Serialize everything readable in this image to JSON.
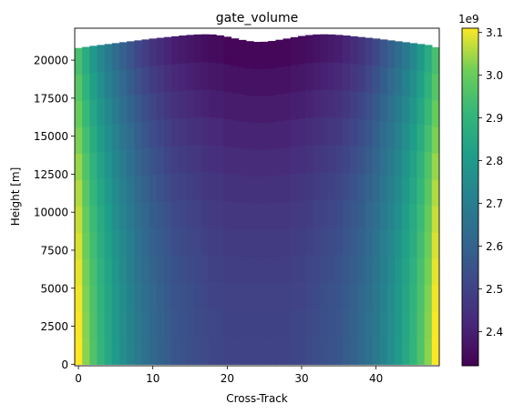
{
  "chart_data": {
    "type": "heatmap",
    "title": "gate_volume",
    "xlabel": "Cross-Track",
    "ylabel": "Height [m]",
    "x_columns": 49,
    "xlim": [
      -0.5,
      48.5
    ],
    "ylim": [
      -100,
      22100
    ],
    "xticks": [
      0,
      10,
      20,
      30,
      40
    ],
    "yticks": [
      0,
      2500,
      5000,
      7500,
      10000,
      12500,
      15000,
      17500,
      20000
    ],
    "column_top_height": [
      20800,
      20870,
      20940,
      21000,
      21060,
      21120,
      21180,
      21240,
      21300,
      21360,
      21420,
      21470,
      21520,
      21570,
      21620,
      21660,
      21690,
      21700,
      21690,
      21630,
      21540,
      21430,
      21330,
      21250,
      21200,
      21210,
      21260,
      21340,
      21420,
      21510,
      21590,
      21650,
      21690,
      21700,
      21690,
      21660,
      21620,
      21570,
      21520,
      21470,
      21420,
      21360,
      21300,
      21240,
      21180,
      21120,
      21060,
      21000,
      20850
    ],
    "column_base_volume": [
      3.11,
      3.03,
      2.96,
      2.9,
      2.85,
      2.8,
      2.76,
      2.72,
      2.68,
      2.65,
      2.62,
      2.6,
      2.58,
      2.56,
      2.55,
      2.54,
      2.53,
      2.52,
      2.51,
      2.51,
      2.5,
      2.5,
      2.5,
      2.5,
      2.5,
      2.5,
      2.5,
      2.5,
      2.5,
      2.51,
      2.51,
      2.52,
      2.53,
      2.54,
      2.55,
      2.56,
      2.58,
      2.6,
      2.62,
      2.65,
      2.68,
      2.72,
      2.76,
      2.8,
      2.85,
      2.9,
      2.96,
      3.03,
      3.11
    ],
    "volume_decrease_at_top": 0.18,
    "colorbar": {
      "colormap": "viridis",
      "range": [
        2.32,
        3.11
      ],
      "ticks": [
        2.4,
        2.5,
        2.6,
        2.7,
        2.8,
        2.9,
        3.0,
        3.1
      ],
      "tick_labels": [
        "2.4",
        "2.5",
        "2.6",
        "2.7",
        "2.8",
        "2.9",
        "3.0",
        "3.1"
      ],
      "multiplier_label": "1e9"
    }
  }
}
